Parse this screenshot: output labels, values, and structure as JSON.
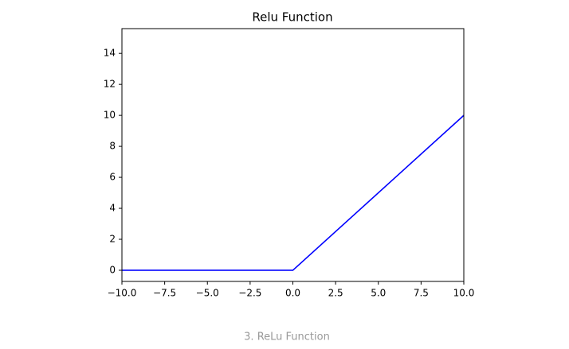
{
  "chart_data": {
    "type": "line",
    "title": "Relu Function",
    "x": [
      -10,
      0,
      10
    ],
    "values": [
      0,
      0,
      10
    ],
    "color": "#0000ff",
    "xlim": [
      -10,
      10
    ],
    "ylim": [
      -0.72,
      15.6
    ],
    "xticks": [
      {
        "value": -10,
        "label": "−10.0"
      },
      {
        "value": -7.5,
        "label": "−7.5"
      },
      {
        "value": -5,
        "label": "−5.0"
      },
      {
        "value": -2.5,
        "label": "−2.5"
      },
      {
        "value": 0,
        "label": "0.0"
      },
      2.5,
      {
        "value": 5,
        "label": "5.0"
      },
      7.5,
      {
        "value": 10,
        "label": "10.0"
      }
    ],
    "yticks": [
      0,
      2,
      4,
      6,
      8,
      10,
      12,
      14
    ],
    "grid": false
  },
  "caption": "3. ReLu Function"
}
